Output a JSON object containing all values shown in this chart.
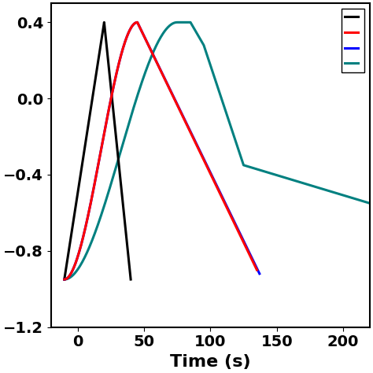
{
  "title": "",
  "xlabel": "Time (s)",
  "ylabel": "",
  "xlim": [
    -20,
    220
  ],
  "ylim": [
    -1.2,
    0.5
  ],
  "yticks": [
    -1.2,
    -0.8,
    -0.4,
    0.0,
    0.4
  ],
  "xticks": [
    0,
    50,
    100,
    150,
    200
  ],
  "line_colors": [
    "#000000",
    "#ff0000",
    "#0000ff",
    "#008080"
  ],
  "linewidth": 2.2,
  "background_color": "#ffffff",
  "xlabel_fontsize": 16,
  "xlabel_fontweight": "bold",
  "tick_fontsize": 14
}
